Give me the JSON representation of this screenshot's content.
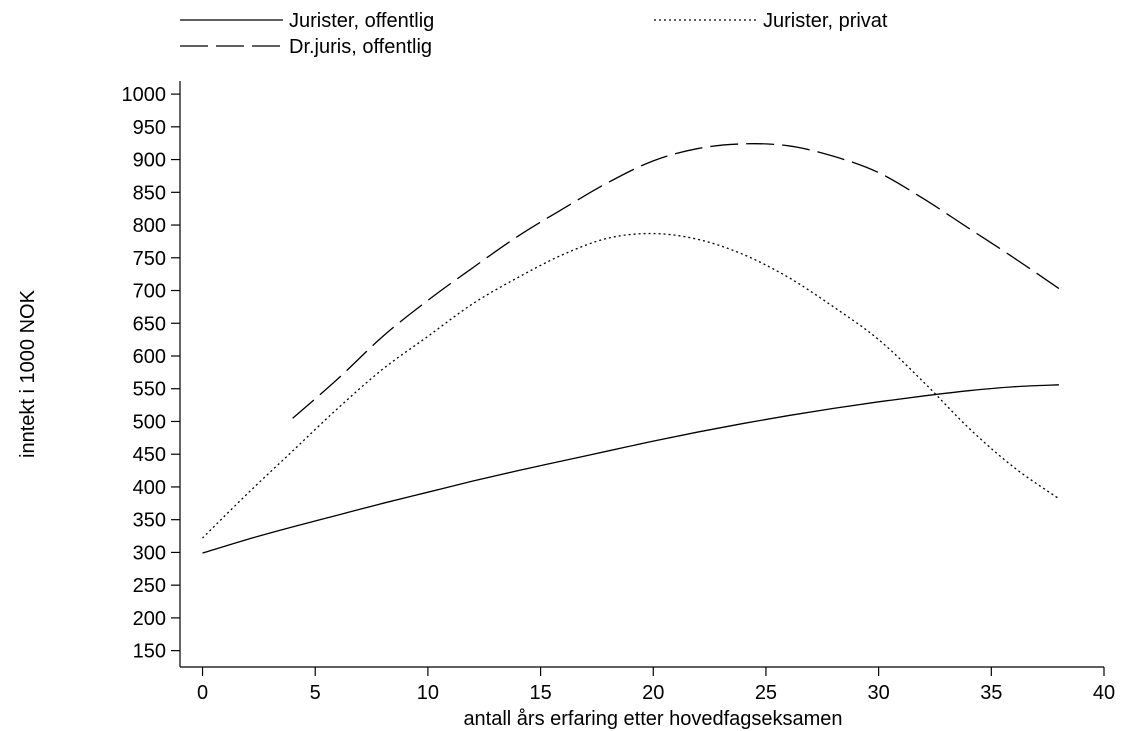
{
  "chart_data": {
    "type": "line",
    "title": "",
    "xlabel": "antall års erfaring etter hovedfagseksamen",
    "ylabel": "inntekt i 1000 NOK",
    "xlim": [
      -1,
      40
    ],
    "ylim": [
      125,
      1020
    ],
    "xticks": [
      0,
      5,
      10,
      15,
      20,
      25,
      30,
      35,
      40
    ],
    "yticks": [
      150,
      200,
      250,
      300,
      350,
      400,
      450,
      500,
      550,
      600,
      650,
      700,
      750,
      800,
      850,
      900,
      950,
      1000
    ],
    "grid": false,
    "legend_position": "top",
    "series": [
      {
        "name": "Jurister, offentlig",
        "style": "solid",
        "color": "#000000",
        "x": [
          0,
          2,
          4,
          6,
          8,
          10,
          12,
          14,
          16,
          18,
          20,
          22,
          24,
          26,
          28,
          30,
          32,
          34,
          36,
          38
        ],
        "y": [
          299,
          320,
          339,
          357,
          375,
          392,
          409,
          425,
          440,
          455,
          470,
          484,
          497,
          509,
          520,
          530,
          539,
          547,
          553,
          556
        ]
      },
      {
        "name": "Jurister, privat",
        "style": "dotted",
        "color": "#000000",
        "x": [
          0,
          2,
          4,
          6,
          8,
          10,
          12,
          14,
          16,
          18,
          20,
          22,
          24,
          26,
          28,
          30,
          32,
          34,
          36,
          38
        ],
        "y": [
          322,
          390,
          455,
          520,
          580,
          630,
          680,
          720,
          755,
          780,
          787,
          778,
          755,
          720,
          675,
          625,
          560,
          490,
          430,
          382
        ]
      },
      {
        "name": "Dr.juris, offentlig",
        "style": "dashed",
        "color": "#000000",
        "x": [
          4,
          6,
          8,
          10,
          12,
          14,
          16,
          18,
          20,
          22,
          24,
          26,
          28,
          30,
          32,
          34,
          36,
          38
        ],
        "y": [
          505,
          565,
          630,
          685,
          735,
          783,
          825,
          865,
          898,
          917,
          924,
          921,
          905,
          880,
          840,
          795,
          750,
          703
        ]
      }
    ]
  }
}
